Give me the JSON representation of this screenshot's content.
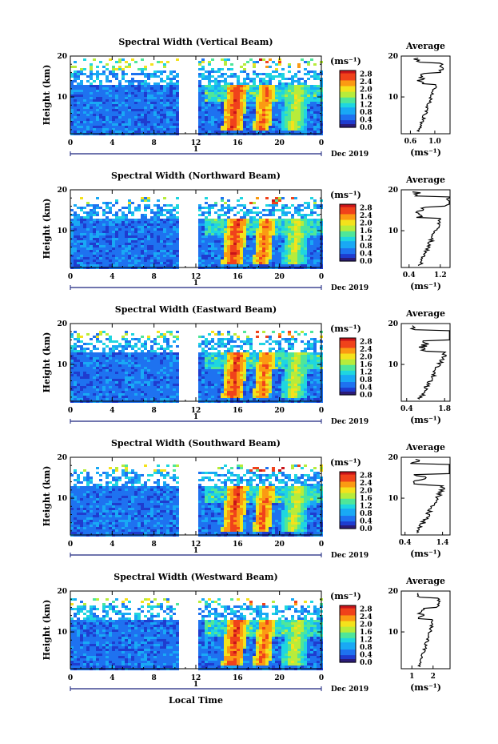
{
  "figure": {
    "xlabel": "Local Time",
    "ylabel": "Height (km)",
    "date_label": "Dec 2019",
    "day_label": "1",
    "colorbar_unit": "(ms⁻¹)",
    "avg_title": "Average",
    "avg_xlabel": "(ms⁻¹)"
  },
  "colors": {
    "colormap": [
      "#2b1b78",
      "#1f3ccf",
      "#1e72f0",
      "#19a9f5",
      "#1fd6e0",
      "#4fe69a",
      "#b7ec3b",
      "#f4e21c",
      "#fb9a13",
      "#f0421b",
      "#c9141a"
    ],
    "no_data": "#ffffff"
  },
  "chart_data": [
    {
      "type": "heatmap",
      "title": "Spectral Width (Vertical Beam)",
      "x_ticks": [
        "0",
        "4",
        "8",
        "12",
        "16",
        "20",
        "0"
      ],
      "xlim": [
        0,
        24
      ],
      "y_ticks": [
        "20",
        "10"
      ],
      "ylim": [
        1,
        20
      ],
      "colorbar_ticks": [
        "2.8",
        "2.4",
        "2.0",
        "1.6",
        "1.2",
        "0.8",
        "0.4",
        "0.0"
      ],
      "colorbar_range": [
        0,
        3.0
      ],
      "data_gaps_hours": [
        [
          10.3,
          12.0
        ],
        [
          12.6,
          12.8
        ]
      ],
      "average": {
        "title": "Average",
        "x_ticks": [
          "0.6",
          "1.0"
        ],
        "xlim": [
          0.45,
          1.25
        ]
      }
    },
    {
      "type": "heatmap",
      "title": "Spectral Width (Northward Beam)",
      "x_ticks": [
        "0",
        "4",
        "8",
        "12",
        "16",
        "20",
        "0"
      ],
      "xlim": [
        0,
        24
      ],
      "y_ticks": [
        "20",
        "10"
      ],
      "ylim": [
        1,
        20
      ],
      "colorbar_ticks": [
        "2.8",
        "2.4",
        "2.0",
        "1.6",
        "1.2",
        "0.8",
        "0.4",
        "0.0"
      ],
      "colorbar_range": [
        0,
        3.0
      ],
      "data_gaps_hours": [
        [
          10.3,
          12.0
        ],
        [
          12.6,
          12.8
        ]
      ],
      "average": {
        "title": "Average",
        "x_ticks": [
          "0.4",
          "1.2"
        ],
        "xlim": [
          0.2,
          1.45
        ]
      }
    },
    {
      "type": "heatmap",
      "title": "Spectral Width (Eastward Beam)",
      "x_ticks": [
        "0",
        "4",
        "8",
        "12",
        "16",
        "20",
        "0"
      ],
      "xlim": [
        0,
        24
      ],
      "y_ticks": [
        "20",
        "10"
      ],
      "ylim": [
        1,
        20
      ],
      "colorbar_ticks": [
        "2.8",
        "2.4",
        "2.0",
        "1.6",
        "1.2",
        "0.8",
        "0.4",
        "0.0"
      ],
      "colorbar_range": [
        0,
        3.0
      ],
      "data_gaps_hours": [
        [
          10.3,
          12.0
        ],
        [
          12.6,
          12.8
        ]
      ],
      "average": {
        "title": "Average",
        "x_ticks": [
          "0.4",
          "1.8"
        ],
        "xlim": [
          0.2,
          2.0
        ]
      }
    },
    {
      "type": "heatmap",
      "title": "Spectral Width (Southward Beam)",
      "x_ticks": [
        "0",
        "4",
        "8",
        "12",
        "16",
        "20",
        "0"
      ],
      "xlim": [
        0,
        24
      ],
      "y_ticks": [
        "20",
        "10"
      ],
      "ylim": [
        1,
        20
      ],
      "colorbar_ticks": [
        "2.8",
        "2.4",
        "2.0",
        "1.6",
        "1.2",
        "0.8",
        "0.4",
        "0.0"
      ],
      "colorbar_range": [
        0,
        3.0
      ],
      "data_gaps_hours": [
        [
          10.3,
          12.0
        ],
        [
          12.6,
          12.8
        ]
      ],
      "average": {
        "title": "Average",
        "x_ticks": [
          "0.4",
          "1.4"
        ],
        "xlim": [
          0.3,
          1.6
        ]
      }
    },
    {
      "type": "heatmap",
      "title": "Spectral Width (Westward Beam)",
      "x_ticks": [
        "0",
        "4",
        "8",
        "12",
        "16",
        "20",
        "0"
      ],
      "xlim": [
        0,
        24
      ],
      "y_ticks": [
        "20",
        "10"
      ],
      "ylim": [
        1,
        20
      ],
      "colorbar_ticks": [
        "2.8",
        "2.4",
        "2.0",
        "1.6",
        "1.2",
        "0.8",
        "0.4",
        "0.0"
      ],
      "colorbar_range": [
        0,
        3.0
      ],
      "data_gaps_hours": [
        [
          10.3,
          12.0
        ],
        [
          12.6,
          12.8
        ]
      ],
      "average": {
        "title": "Average",
        "x_ticks": [
          "1",
          "2"
        ],
        "xlim": [
          0.5,
          2.8
        ]
      }
    }
  ]
}
